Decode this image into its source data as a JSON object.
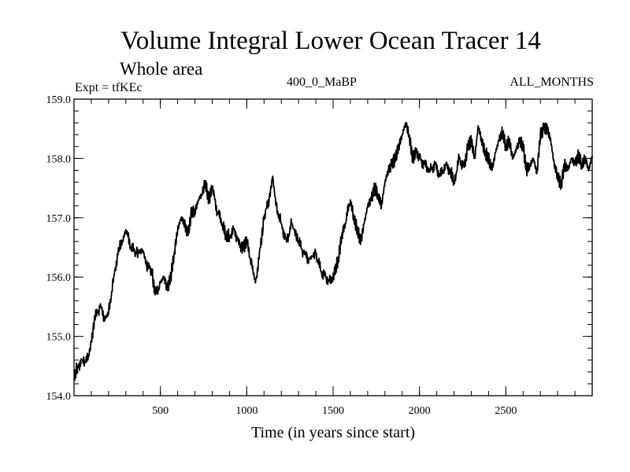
{
  "chart_data": {
    "type": "line",
    "title": "Volume Integral Lower Ocean Tracer 14",
    "subtitle": "Whole area",
    "annotations": {
      "experiment": "Expt = tfKEc",
      "period": "400_0_MaBP",
      "months": "ALL_MONTHS"
    },
    "xlabel": "Time (in years since start)",
    "ylabel": "",
    "xlim": [
      0,
      3000
    ],
    "ylim": [
      154.0,
      159.0
    ],
    "x_ticks": [
      500,
      1000,
      1500,
      2000,
      2500
    ],
    "x_tick_labels": [
      "500",
      "1000",
      "1500",
      "2000",
      "2500"
    ],
    "y_ticks": [
      154.0,
      155.0,
      156.0,
      157.0,
      158.0,
      159.0
    ],
    "y_tick_labels": [
      "154.0",
      "155.0",
      "156.0",
      "157.0",
      "158.0",
      "159.0"
    ],
    "grid": false,
    "series": [
      {
        "color": "#000000",
        "x": [
          0,
          20,
          50,
          80,
          100,
          120,
          150,
          180,
          200,
          230,
          260,
          280,
          300,
          330,
          360,
          400,
          420,
          450,
          470,
          500,
          520,
          540,
          560,
          580,
          600,
          620,
          640,
          660,
          680,
          700,
          720,
          740,
          760,
          780,
          800,
          830,
          860,
          880,
          900,
          930,
          960,
          980,
          1000,
          1030,
          1050,
          1080,
          1100,
          1130,
          1150,
          1170,
          1200,
          1230,
          1260,
          1300,
          1330,
          1360,
          1400,
          1430,
          1460,
          1490,
          1510,
          1530,
          1550,
          1570,
          1600,
          1620,
          1640,
          1660,
          1680,
          1700,
          1720,
          1740,
          1760,
          1780,
          1800,
          1820,
          1840,
          1860,
          1880,
          1900,
          1920,
          1940,
          1960,
          1980,
          2000,
          2030,
          2060,
          2090,
          2120,
          2150,
          2180,
          2200,
          2230,
          2260,
          2280,
          2300,
          2320,
          2340,
          2360,
          2380,
          2400,
          2420,
          2440,
          2460,
          2480,
          2500,
          2520,
          2540,
          2560,
          2580,
          2600,
          2620,
          2640,
          2660,
          2680,
          2700,
          2720,
          2740,
          2760,
          2780,
          2800,
          2820,
          2840,
          2860,
          2880,
          2900,
          2920,
          2940,
          2960,
          2980,
          3000
        ],
        "y": [
          154.3,
          154.5,
          154.6,
          154.6,
          154.9,
          155.3,
          155.5,
          155.3,
          155.4,
          156.0,
          156.5,
          156.6,
          156.8,
          156.5,
          156.4,
          156.45,
          156.2,
          156.1,
          155.7,
          155.9,
          156.0,
          155.8,
          156.0,
          156.4,
          156.8,
          157.0,
          156.9,
          156.7,
          157.1,
          157.1,
          157.3,
          157.4,
          157.6,
          157.3,
          157.5,
          157.1,
          156.9,
          156.7,
          156.7,
          156.8,
          156.5,
          156.5,
          156.6,
          156.2,
          155.9,
          156.5,
          157.0,
          157.3,
          157.7,
          157.2,
          156.9,
          156.6,
          156.9,
          156.6,
          156.4,
          156.3,
          156.4,
          156.1,
          156.0,
          155.9,
          156.1,
          156.3,
          156.7,
          156.9,
          157.3,
          157.0,
          156.8,
          156.6,
          156.9,
          157.2,
          157.3,
          157.5,
          157.4,
          157.2,
          157.6,
          157.8,
          157.9,
          158.0,
          158.2,
          158.4,
          158.6,
          158.4,
          158.0,
          158.1,
          158.0,
          157.9,
          157.8,
          157.9,
          157.7,
          157.9,
          157.8,
          157.6,
          158.0,
          157.85,
          158.2,
          158.3,
          158.0,
          158.55,
          158.3,
          158.1,
          158.0,
          157.8,
          158.1,
          158.3,
          158.45,
          158.2,
          158.3,
          158.0,
          158.15,
          158.3,
          158.2,
          157.8,
          157.9,
          158.0,
          157.75,
          158.4,
          158.5,
          158.5,
          158.3,
          157.9,
          157.7,
          157.55,
          157.9,
          157.8,
          158.0,
          157.9,
          158.05,
          157.9,
          158.0,
          157.8,
          158.05
        ]
      }
    ]
  }
}
